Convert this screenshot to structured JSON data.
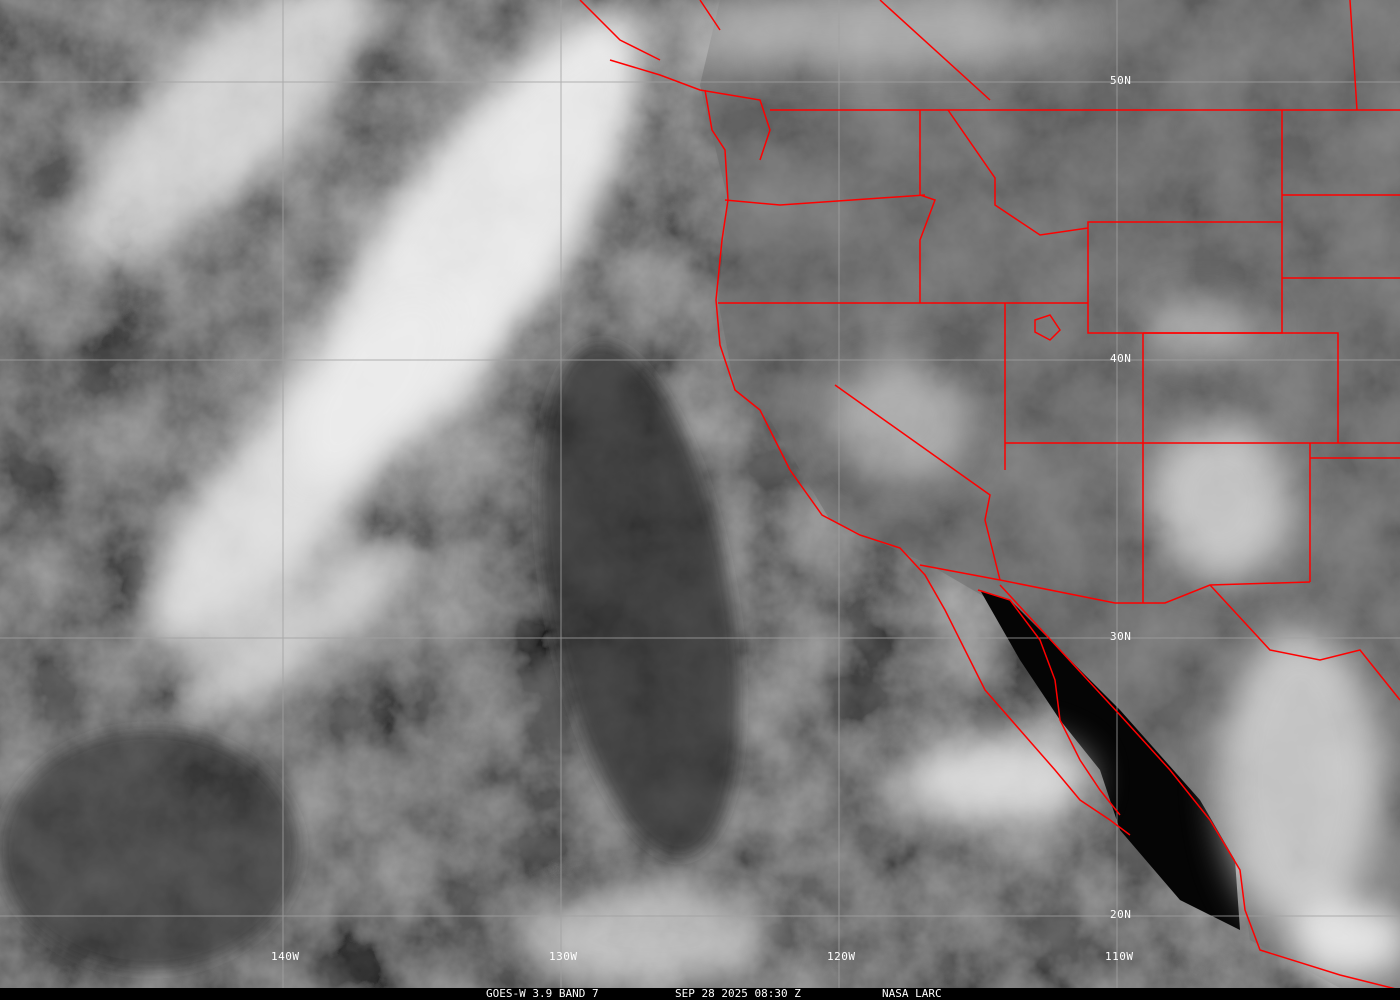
{
  "image": {
    "caption": {
      "satellite": "GOES-W 3.9 BAND 7",
      "datetime": "SEP 28 2025 08:30 Z",
      "credit": "NASA LARC"
    },
    "latitude_labels": [
      "50N",
      "40N",
      "30N",
      "20N"
    ],
    "longitude_labels": [
      "140W",
      "130W",
      "120W",
      "110W"
    ],
    "colors": {
      "borders": "#ff0000",
      "grid": "#a0a0a0",
      "text": "#ffffff",
      "background": "#000000"
    }
  }
}
